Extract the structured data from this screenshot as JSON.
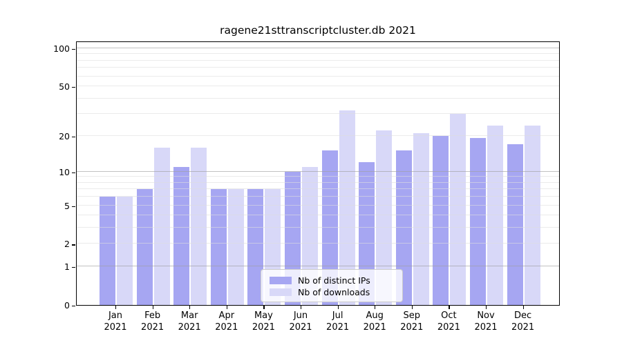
{
  "title": "ragene21sttranscriptcluster.db 2021",
  "colors": {
    "ips_bar": "#a6a6f2",
    "downloads_bar": "#d8d8f8",
    "grid_major": "rgba(160,160,160,0.65)",
    "grid_minor": "rgba(222,222,222,0.6)",
    "axis": "#000000",
    "legend_border": "#cccccc",
    "text": "#000000",
    "background": "#ffffff"
  },
  "legend": {
    "items": [
      {
        "label": "Nb of distinct IPs",
        "swatch": "ips_bar"
      },
      {
        "label": "Nb of downloads",
        "swatch": "downloads_bar"
      }
    ]
  },
  "x_axis": {
    "months": [
      "Jan",
      "Feb",
      "Mar",
      "Apr",
      "May",
      "Jun",
      "Jul",
      "Aug",
      "Sep",
      "Oct",
      "Nov",
      "Dec"
    ],
    "year_label": "2021"
  },
  "y_axis": {
    "tick_values": [
      100,
      50,
      20,
      10,
      5,
      2,
      1,
      0
    ],
    "tick_labels": [
      "100",
      "50",
      "20",
      "10",
      "5",
      "2",
      "1",
      "0"
    ]
  },
  "chart_data": {
    "type": "bar",
    "title": "ragene21sttranscriptcluster.db 2021",
    "categories": [
      "Jan 2021",
      "Feb 2021",
      "Mar 2021",
      "Apr 2021",
      "May 2021",
      "Jun 2021",
      "Jul 2021",
      "Aug 2021",
      "Sep 2021",
      "Oct 2021",
      "Nov 2021",
      "Dec 2021"
    ],
    "series": [
      {
        "name": "Nb of distinct IPs",
        "values": [
          6,
          7,
          11,
          7,
          7,
          10,
          15,
          12,
          15,
          20,
          19,
          17
        ]
      },
      {
        "name": "Nb of downloads",
        "values": [
          6,
          16,
          16,
          7,
          7,
          11,
          32,
          22,
          21,
          30,
          24,
          24
        ]
      }
    ],
    "xlabel": "",
    "ylabel": "",
    "y_scale": "log1p",
    "y_ticks": [
      0,
      1,
      2,
      5,
      10,
      20,
      50,
      100
    ],
    "y_grid_major": [
      1,
      10,
      100
    ],
    "y_grid_minor": [
      2,
      3,
      4,
      5,
      6,
      7,
      8,
      9,
      20,
      30,
      40,
      50,
      60,
      70,
      80,
      90
    ],
    "ylim": [
      0,
      115
    ],
    "grid": "on",
    "legend_position": "inside lower-center"
  }
}
